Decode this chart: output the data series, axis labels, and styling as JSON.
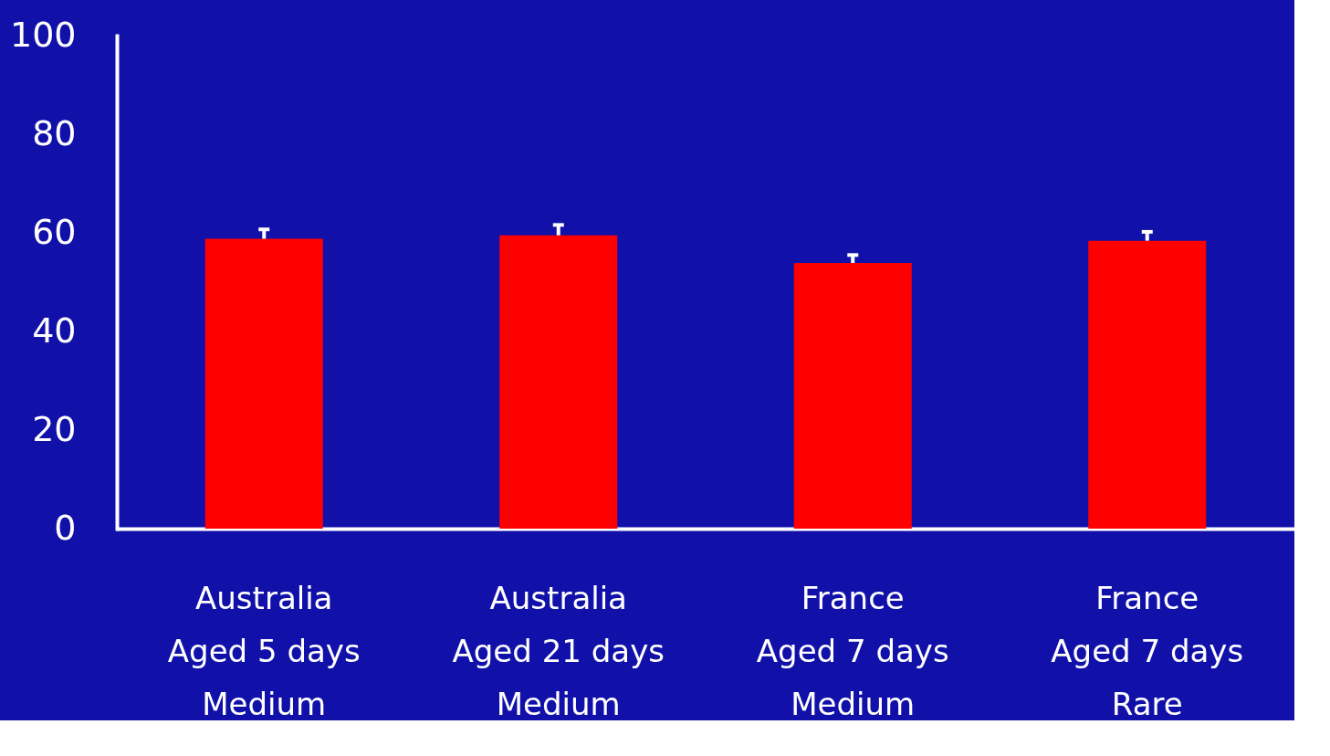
{
  "chart_data": {
    "type": "bar",
    "categories": [
      "Australia\nAged 5 days\nMedium",
      "Australia\nAged 21 days\nMedium",
      "France\nAged 7 days\nMedium",
      "France\nAged 7 days\nRare"
    ],
    "values": [
      58.8,
      59.5,
      53.9,
      58.4
    ],
    "errors": [
      [
        58.8,
        60.7
      ],
      [
        59.5,
        61.6
      ],
      [
        53.9,
        55.5
      ],
      [
        58.4,
        60.2
      ]
    ],
    "color": "#ff0000",
    "ylim": [
      0,
      100
    ],
    "yticks": [
      0,
      20,
      40,
      60,
      80,
      100
    ],
    "grid": false
  }
}
